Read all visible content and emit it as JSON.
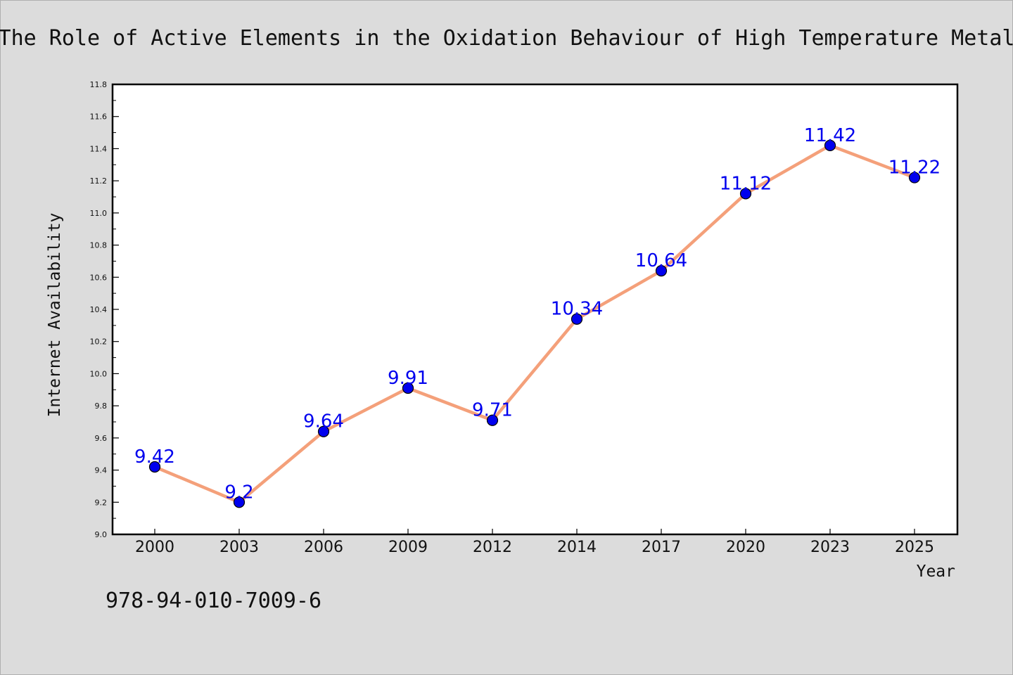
{
  "chart_data": {
    "type": "line",
    "title": "The Role of Active Elements in the Oxidation Behaviour of High Temperature Metal",
    "xlabel": "Year",
    "ylabel": "Internet Availability",
    "categories": [
      "2000",
      "2003",
      "2006",
      "2009",
      "2012",
      "2014",
      "2017",
      "2020",
      "2023",
      "2025"
    ],
    "series": [
      {
        "values": [
          9.42,
          9.2,
          9.64,
          9.91,
          9.71,
          10.34,
          10.64,
          11.12,
          11.42,
          11.22
        ],
        "labels": [
          "9.42",
          "9.2",
          "9.64",
          "9.91",
          "9.71",
          "10.34",
          "10.64",
          "11.12",
          "11.42",
          "11.22"
        ]
      }
    ],
    "ylim": [
      9.0,
      11.8
    ],
    "yticks": [
      "9.0",
      "9.2",
      "9.4",
      "9.6",
      "9.8",
      "10.0",
      "10.2",
      "10.4",
      "10.6",
      "10.8",
      "11.0",
      "11.2",
      "11.4",
      "11.6",
      "11.8"
    ],
    "grid": false,
    "legend": "none",
    "colors": {
      "line": "#f4a07a",
      "marker": "#0000ee",
      "marker_edge": "#000000",
      "data_label": "#0000ee",
      "axes_background": "#ffffff",
      "figure_background": "#dcdcdc"
    }
  },
  "annotation": {
    "isbn": "978-94-010-7009-6"
  }
}
